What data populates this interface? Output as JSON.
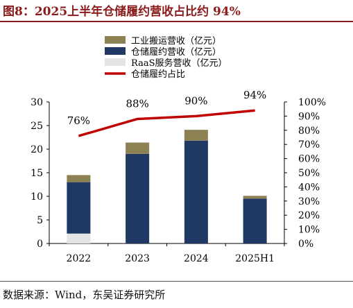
{
  "title": "图8：2025上半年仓储履约营收占比约 94%",
  "source": "数据来源：Wind，东吴证券研究所",
  "chart_data": {
    "type": "bar",
    "stacked": true,
    "categories": [
      "2022",
      "2023",
      "2024",
      "2025H1"
    ],
    "series": [
      {
        "name": "RaaS服务营收（亿元）",
        "values": [
          2.1,
          0,
          0,
          0
        ],
        "color": "#e4e4e4"
      },
      {
        "name": "仓储履约营收（亿元）",
        "values": [
          10.9,
          19.0,
          21.8,
          9.5
        ],
        "color": "#1f3864"
      },
      {
        "name": "工业搬运营收（亿元）",
        "values": [
          1.5,
          2.4,
          2.3,
          0.6
        ],
        "color": "#8c8153"
      }
    ],
    "line": {
      "name": "仓储履约占比",
      "values": [
        76,
        88,
        90,
        94
      ],
      "labels": [
        "76%",
        "88%",
        "90%",
        "94%"
      ],
      "color": "#c00000"
    },
    "legend_order": [
      "工业搬运营收（亿元）",
      "仓储履约营收（亿元）",
      "RaaS服务营收（亿元）",
      "仓储履约占比"
    ],
    "ylim": [
      0,
      30
    ],
    "yticks": [
      "0",
      "5",
      "10",
      "15",
      "20",
      "25",
      "30"
    ],
    "y2lim": [
      0,
      100
    ],
    "y2ticks": [
      "0%",
      "10%",
      "20%",
      "30%",
      "40%",
      "50%",
      "60%",
      "70%",
      "80%",
      "90%",
      "100%"
    ],
    "legend_position": "top-left",
    "grid": false
  }
}
